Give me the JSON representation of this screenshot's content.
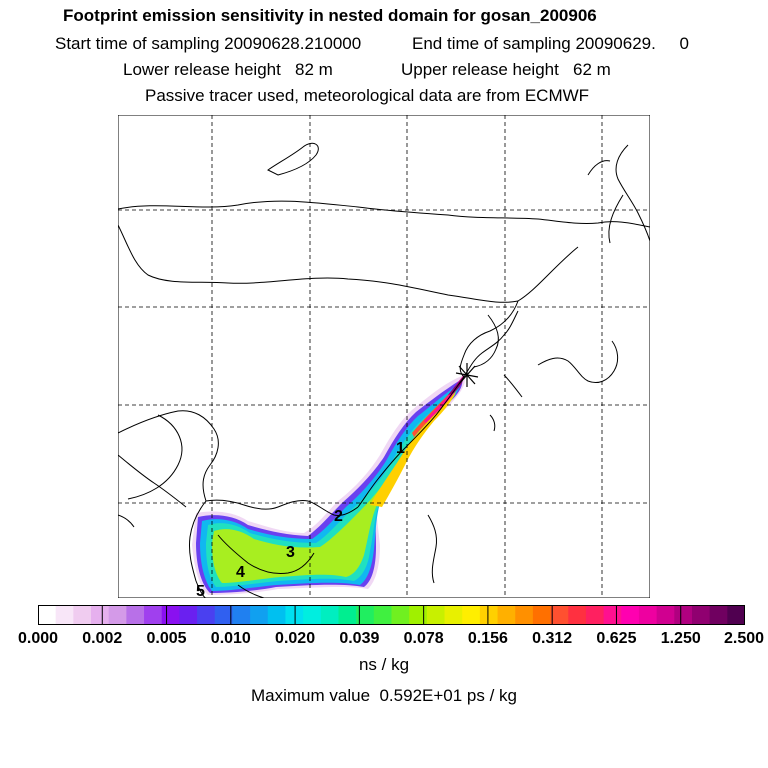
{
  "header": {
    "title": "Footprint emission sensitivity in nested domain for gosan_200906",
    "start_time": "Start time of sampling 20090628.210000",
    "end_time": "End time of sampling 20090629.     0",
    "lower_release": "Lower release height   82 m",
    "upper_release": "Upper release height   62 m",
    "tracer_note": "Passive tracer used, meteorological data are from ECMWF"
  },
  "map": {
    "station_marker": "cross-star",
    "day_labels": [
      "1",
      "2",
      "3",
      "4",
      "5"
    ]
  },
  "colorbar": {
    "tick_labels": [
      "0.000",
      "0.002",
      "0.005",
      "0.010",
      "0.020",
      "0.039",
      "0.078",
      "0.156",
      "0.312",
      "0.625",
      "1.250",
      "2.500"
    ],
    "colors": [
      "#ffffff",
      "#f8e6f8",
      "#f0ccf0",
      "#e6b0ee",
      "#d49ae8",
      "#b870e8",
      "#a040ee",
      "#8a10f0",
      "#6a20f0",
      "#4a40f0",
      "#3060f0",
      "#2080f0",
      "#10a0f0",
      "#00c0f0",
      "#00e0f0",
      "#00eee0",
      "#00eec0",
      "#00ee90",
      "#20ee60",
      "#40f040",
      "#70f020",
      "#a0f000",
      "#c8f000",
      "#e8f000",
      "#ffee00",
      "#ffd000",
      "#ffb000",
      "#ff9000",
      "#ff7000",
      "#ff5030",
      "#ff3040",
      "#ff2060",
      "#ff1090",
      "#ff00b0",
      "#ee00a0",
      "#d00090",
      "#b00080",
      "#900070",
      "#700060",
      "#500050"
    ],
    "unit": "ns / kg",
    "maximum": "Maximum value  0.592E+01 ps / kg"
  }
}
